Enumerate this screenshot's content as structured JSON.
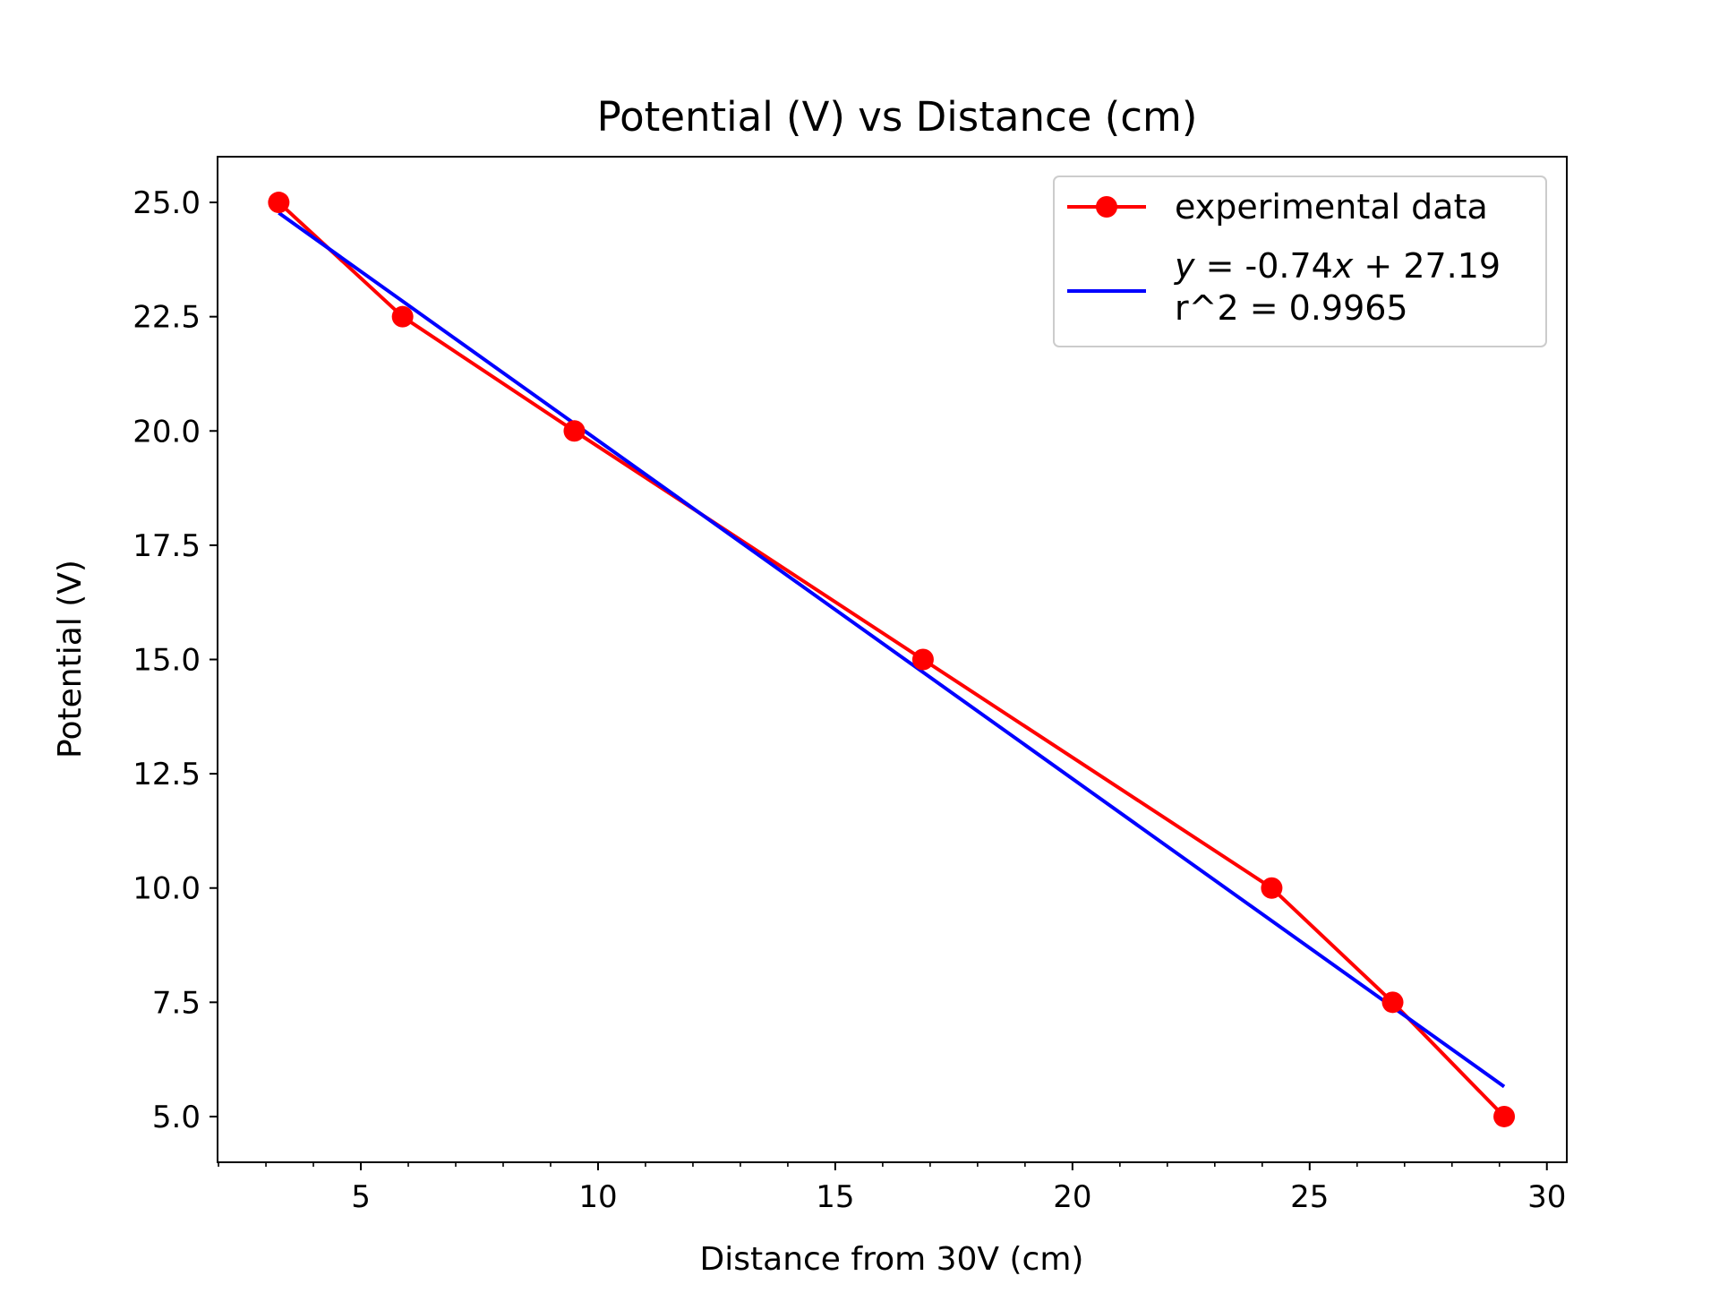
{
  "chart_data": {
    "type": "line",
    "title": "Potential (V) vs Distance (cm)",
    "xlabel": "Distance from 30V (cm)",
    "ylabel": "Potential (V)",
    "xlim": [
      1.98,
      30.42
    ],
    "ylim": [
      4.0,
      26.0
    ],
    "xticks": [
      5,
      10,
      15,
      20,
      25,
      30
    ],
    "xtick_labels": [
      "5",
      "10",
      "15",
      "20",
      "25",
      "30"
    ],
    "xminor_step": 1,
    "yticks": [
      5.0,
      7.5,
      10.0,
      12.5,
      15.0,
      17.5,
      20.0,
      22.5,
      25.0
    ],
    "ytick_labels": [
      "5.0",
      "7.5",
      "10.0",
      "12.5",
      "15.0",
      "17.5",
      "20.0",
      "22.5",
      "25.0"
    ],
    "grid": false,
    "legend_position": "top-right",
    "series": [
      {
        "name": "experimental data",
        "kind": "line-with-markers",
        "color": "#ff0000",
        "x": [
          3.27,
          5.88,
          9.5,
          16.85,
          24.2,
          26.75,
          29.1
        ],
        "y": [
          25.0,
          22.5,
          20.0,
          15.0,
          10.0,
          7.5,
          5.0
        ]
      },
      {
        "name_line1_prefix": "y",
        "name_line1_mid": " = -0.74",
        "name_line1_var": "x",
        "name_line1_suffix": " + 27.19",
        "name_line2": "r^2 = 0.9965",
        "kind": "fit-line",
        "color": "#0000ff",
        "slope": -0.74,
        "intercept": 27.19,
        "x_range": [
          3.27,
          29.1
        ]
      }
    ]
  }
}
